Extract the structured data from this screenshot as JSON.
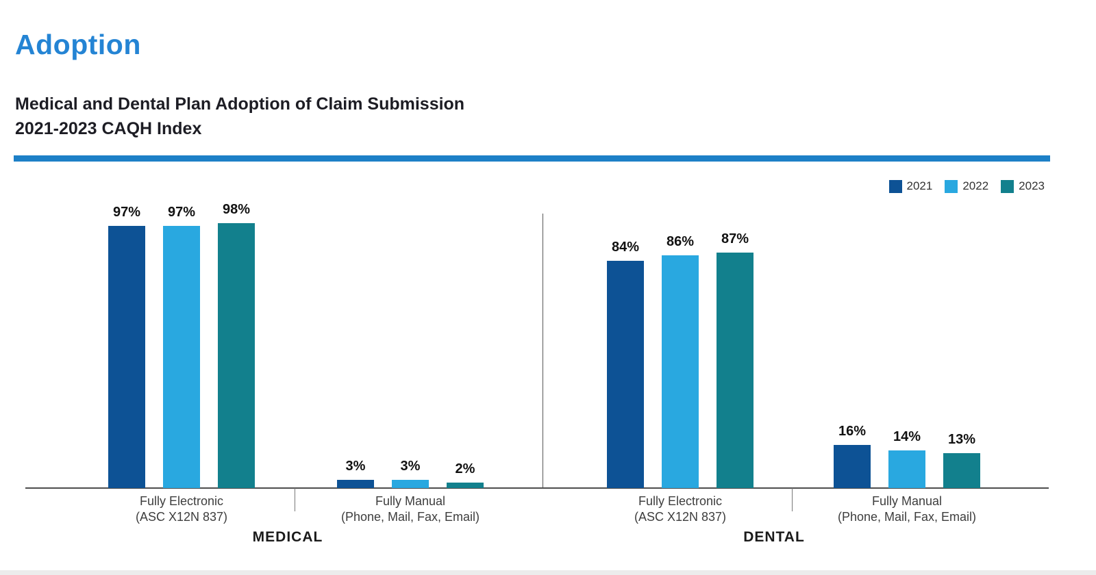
{
  "page": {
    "title": "Adoption",
    "subtitle_line1": "Medical and Dental Plan Adoption of Claim Submission",
    "subtitle_line2": "2021-2023 CAQH Index"
  },
  "colors": {
    "title_blue": "#2484d4",
    "rule_blue": "#1d80c7",
    "series": [
      "#0d5295",
      "#29a8e0",
      "#12808d"
    ],
    "axis_gray": "#4d4d4d"
  },
  "legend": [
    {
      "label": "2021",
      "color": "#0d5295"
    },
    {
      "label": "2022",
      "color": "#29a8e0"
    },
    {
      "label": "2023",
      "color": "#12808d"
    }
  ],
  "chart_data": {
    "type": "bar",
    "title": "Medical and Dental Plan Adoption of Claim Submission 2021-2023 CAQH Index",
    "unit": "%",
    "ylim": [
      0,
      100
    ],
    "grid": false,
    "legend_position": "top-right",
    "series_names": [
      "2021",
      "2022",
      "2023"
    ],
    "sections": [
      {
        "label": "MEDICAL",
        "groups": [
          {
            "category_line1": "Fully Electronic",
            "category_line2": "(ASC X12N 837)",
            "values": [
              97,
              97,
              98
            ],
            "value_labels": [
              "97%",
              "97%",
              "98%"
            ]
          },
          {
            "category_line1": "Fully Manual",
            "category_line2": "(Phone, Mail, Fax, Email)",
            "values": [
              3,
              3,
              2
            ],
            "value_labels": [
              "3%",
              "3%",
              "2%"
            ]
          }
        ]
      },
      {
        "label": "DENTAL",
        "groups": [
          {
            "category_line1": "Fully Electronic",
            "category_line2": "(ASC X12N 837)",
            "values": [
              84,
              86,
              87
            ],
            "value_labels": [
              "84%",
              "86%",
              "87%"
            ]
          },
          {
            "category_line1": "Fully Manual",
            "category_line2": "(Phone, Mail, Fax, Email)",
            "values": [
              16,
              14,
              13
            ],
            "value_labels": [
              "16%",
              "14%",
              "13%"
            ]
          }
        ]
      }
    ]
  }
}
